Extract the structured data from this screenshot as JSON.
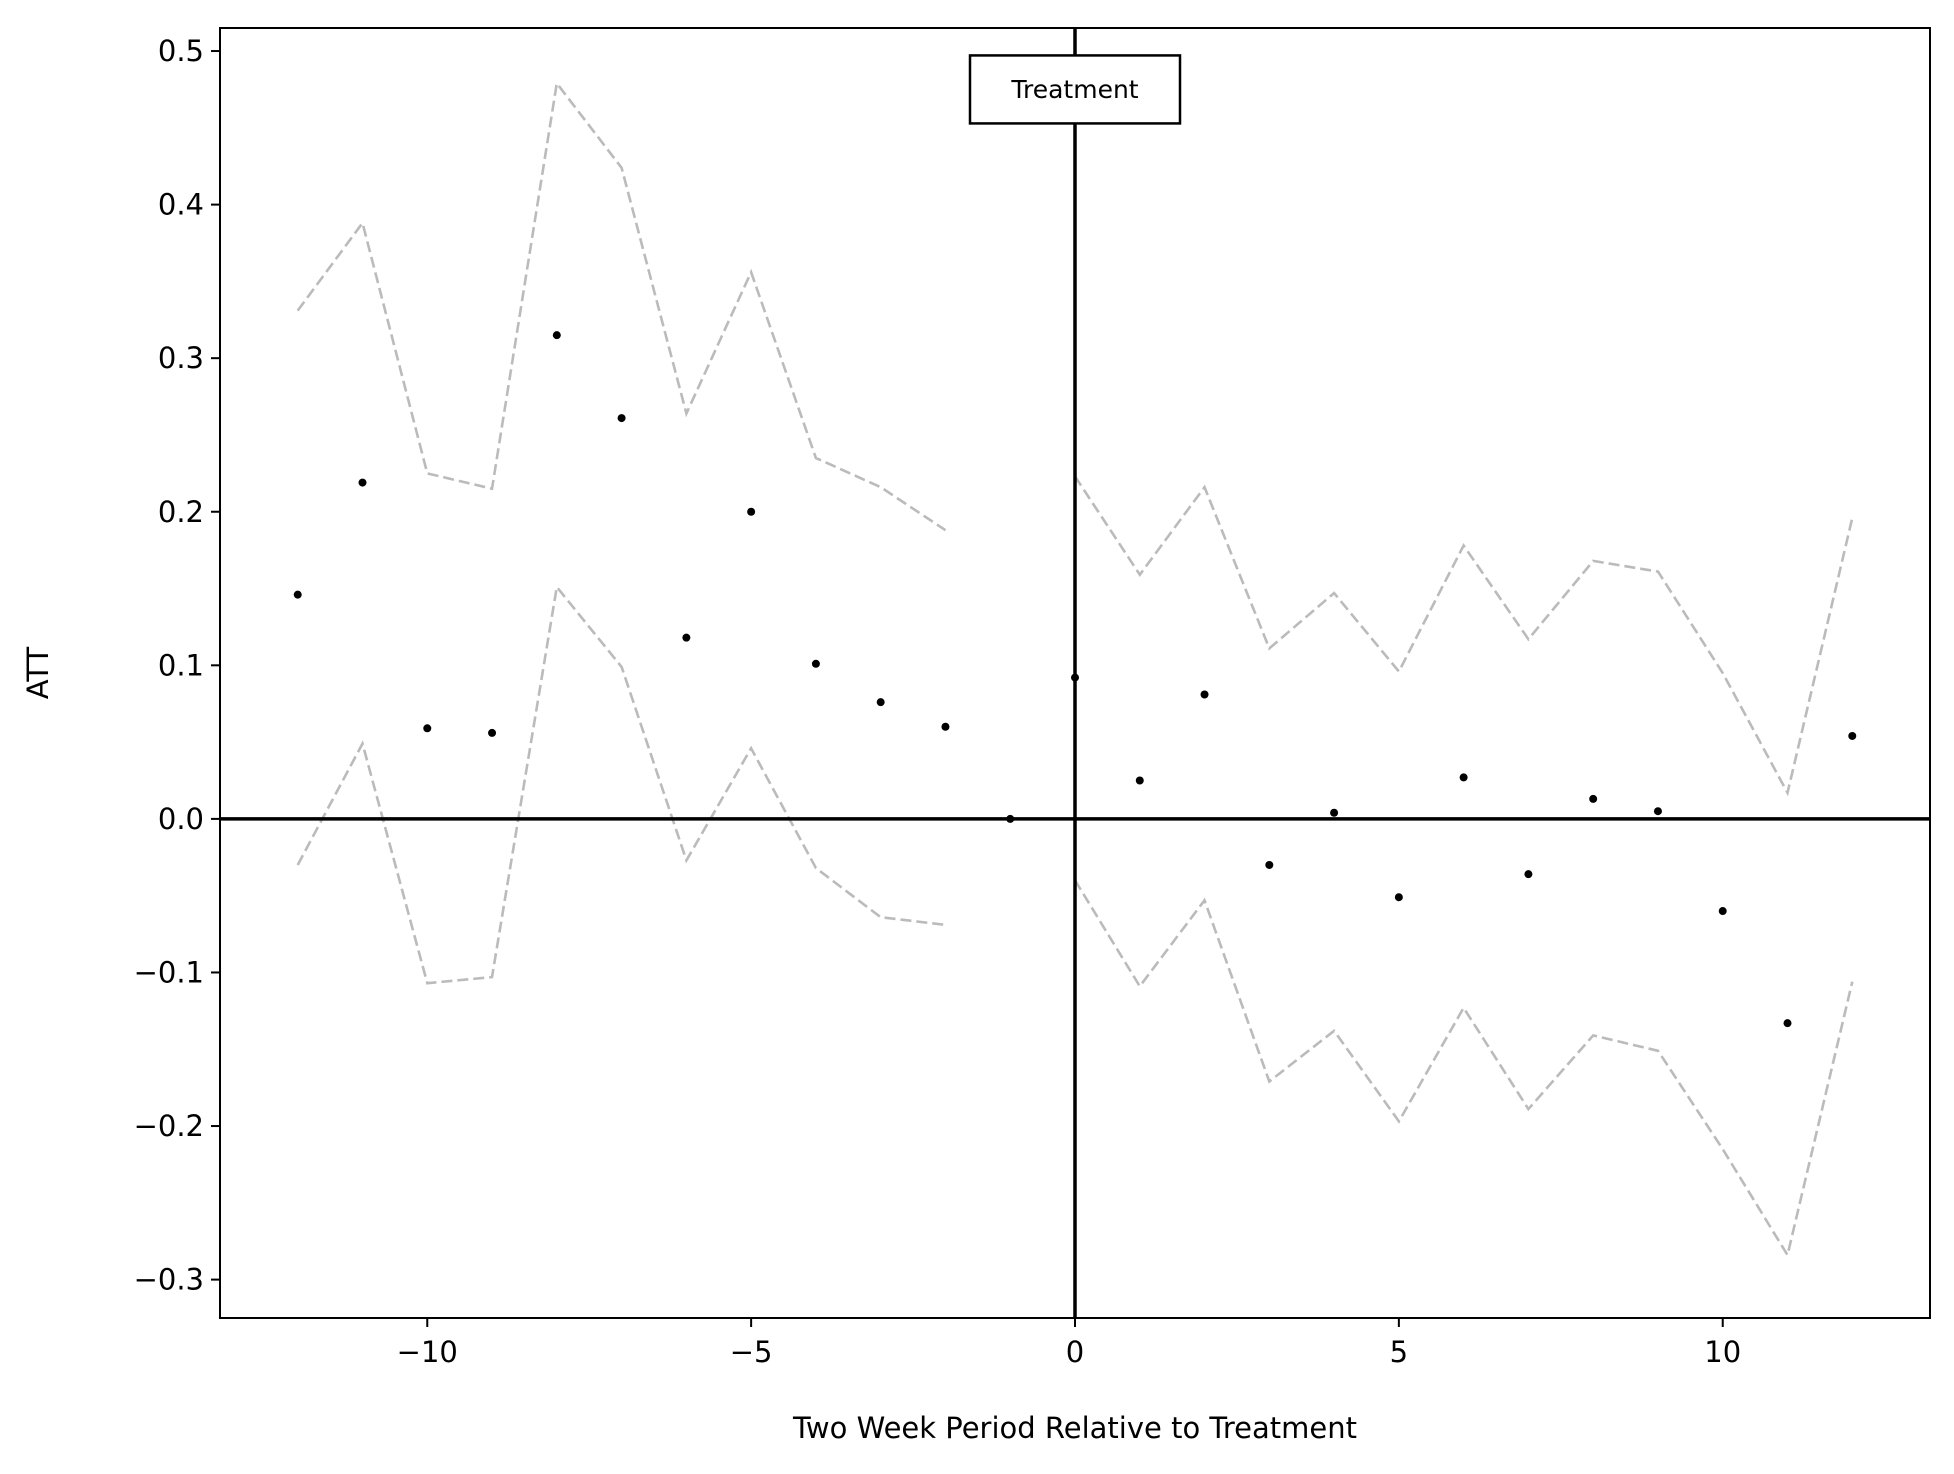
{
  "chart_data": {
    "type": "scatter",
    "title": "",
    "xlabel": "Two Week Period Relative to Treatment",
    "ylabel": "ATT",
    "xlim": [
      -13.2,
      13.2
    ],
    "ylim": [
      -0.325,
      0.515
    ],
    "x_ticks": [
      -10,
      -5,
      0,
      5,
      10
    ],
    "x_tick_labels": [
      "−10",
      "−5",
      "0",
      "5",
      "10"
    ],
    "y_ticks": [
      -0.3,
      -0.2,
      -0.1,
      0.0,
      0.1,
      0.2,
      0.3,
      0.4,
      0.5
    ],
    "y_tick_labels": [
      "−0.3",
      "−0.2",
      "−0.1",
      "0.0",
      "0.1",
      "0.2",
      "0.3",
      "0.4",
      "0.5"
    ],
    "grid": false,
    "reference_lines": {
      "x": 0,
      "y": 0
    },
    "annotation": {
      "text": "Treatment",
      "x": 0,
      "y": 0.475
    },
    "series": [
      {
        "role": "estimate",
        "style": "points",
        "color": "#000000",
        "x": [
          -12,
          -11,
          -10,
          -9,
          -8,
          -7,
          -6,
          -5,
          -4,
          -3,
          -2,
          -1,
          0,
          1,
          2,
          3,
          4,
          5,
          6,
          7,
          8,
          9,
          10,
          11,
          12
        ],
        "y": [
          0.146,
          0.219,
          0.059,
          0.056,
          0.315,
          0.261,
          0.118,
          0.2,
          0.101,
          0.076,
          0.06,
          0.0,
          0.092,
          0.025,
          0.081,
          -0.03,
          0.004,
          -0.051,
          0.027,
          -0.036,
          0.013,
          0.005,
          -0.06,
          -0.133,
          0.054
        ]
      },
      {
        "role": "upper-bound",
        "style": "dashed",
        "color": "#bbbbbb",
        "segments": [
          {
            "x": [
              -12,
              -11,
              -10,
              -9,
              -8,
              -7,
              -6,
              -5,
              -4,
              -3,
              -2
            ],
            "y": [
              0.331,
              0.388,
              0.225,
              0.215,
              0.479,
              0.424,
              0.264,
              0.356,
              0.235,
              0.216,
              0.188
            ]
          },
          {
            "x": [
              0,
              1,
              2,
              3,
              4,
              5,
              6,
              7,
              8,
              9,
              10,
              11,
              12
            ],
            "y": [
              0.223,
              0.159,
              0.216,
              0.111,
              0.147,
              0.096,
              0.178,
              0.117,
              0.168,
              0.161,
              0.095,
              0.017,
              0.196
            ]
          }
        ]
      },
      {
        "role": "lower-bound",
        "style": "dashed",
        "color": "#bbbbbb",
        "segments": [
          {
            "x": [
              -12,
              -11,
              -10,
              -9,
              -8,
              -7,
              -6,
              -5,
              -4,
              -3,
              -2
            ],
            "y": [
              -0.03,
              0.049,
              -0.107,
              -0.103,
              0.151,
              0.099,
              -0.027,
              0.046,
              -0.032,
              -0.064,
              -0.069
            ]
          },
          {
            "x": [
              0,
              1,
              2,
              3,
              4,
              5,
              6,
              7,
              8,
              9,
              10,
              11,
              12
            ],
            "y": [
              -0.04,
              -0.109,
              -0.053,
              -0.171,
              -0.138,
              -0.197,
              -0.123,
              -0.189,
              -0.141,
              -0.151,
              -0.215,
              -0.284,
              -0.106
            ]
          }
        ]
      }
    ]
  }
}
